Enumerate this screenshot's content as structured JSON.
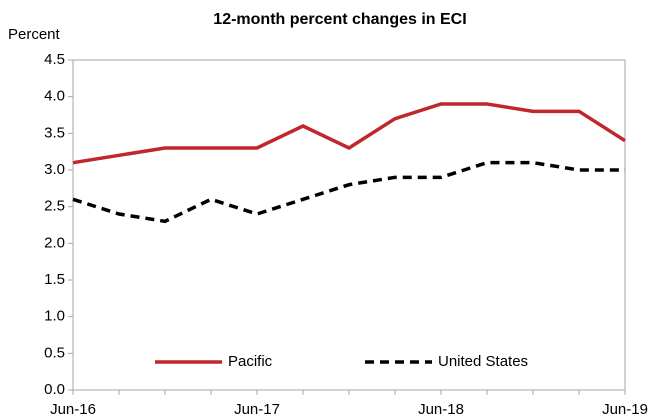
{
  "chart_data": {
    "type": "line",
    "title": "12-month percent changes in ECI",
    "y_label": "Percent",
    "categories": [
      "Jun-16",
      null,
      null,
      null,
      "Jun-17",
      null,
      null,
      null,
      "Jun-18",
      null,
      null,
      null,
      "Jun-19"
    ],
    "series": [
      {
        "name": "Pacific",
        "color": "#c0272d",
        "dash": "solid",
        "values": [
          3.1,
          3.2,
          3.3,
          3.3,
          3.3,
          3.6,
          3.3,
          3.7,
          3.9,
          3.9,
          3.8,
          3.8,
          3.4
        ]
      },
      {
        "name": "United States",
        "color": "#000000",
        "dash": "dashed",
        "values": [
          2.6,
          2.4,
          2.3,
          2.6,
          2.4,
          2.6,
          2.8,
          2.9,
          2.9,
          3.1,
          3.1,
          3.0,
          3.0
        ]
      }
    ],
    "ylim": [
      0,
      4.5
    ],
    "yticks": [
      {
        "value": 0,
        "label": "0.0"
      },
      0.5,
      {
        "value": 1,
        "label": "1.0"
      },
      1.5,
      {
        "value": 2,
        "label": "2.0"
      },
      2.5,
      {
        "value": 3,
        "label": "3.0"
      },
      3.5,
      {
        "value": 4,
        "label": "4.0"
      },
      4.5
    ],
    "grid": false,
    "legend": "lower center"
  }
}
